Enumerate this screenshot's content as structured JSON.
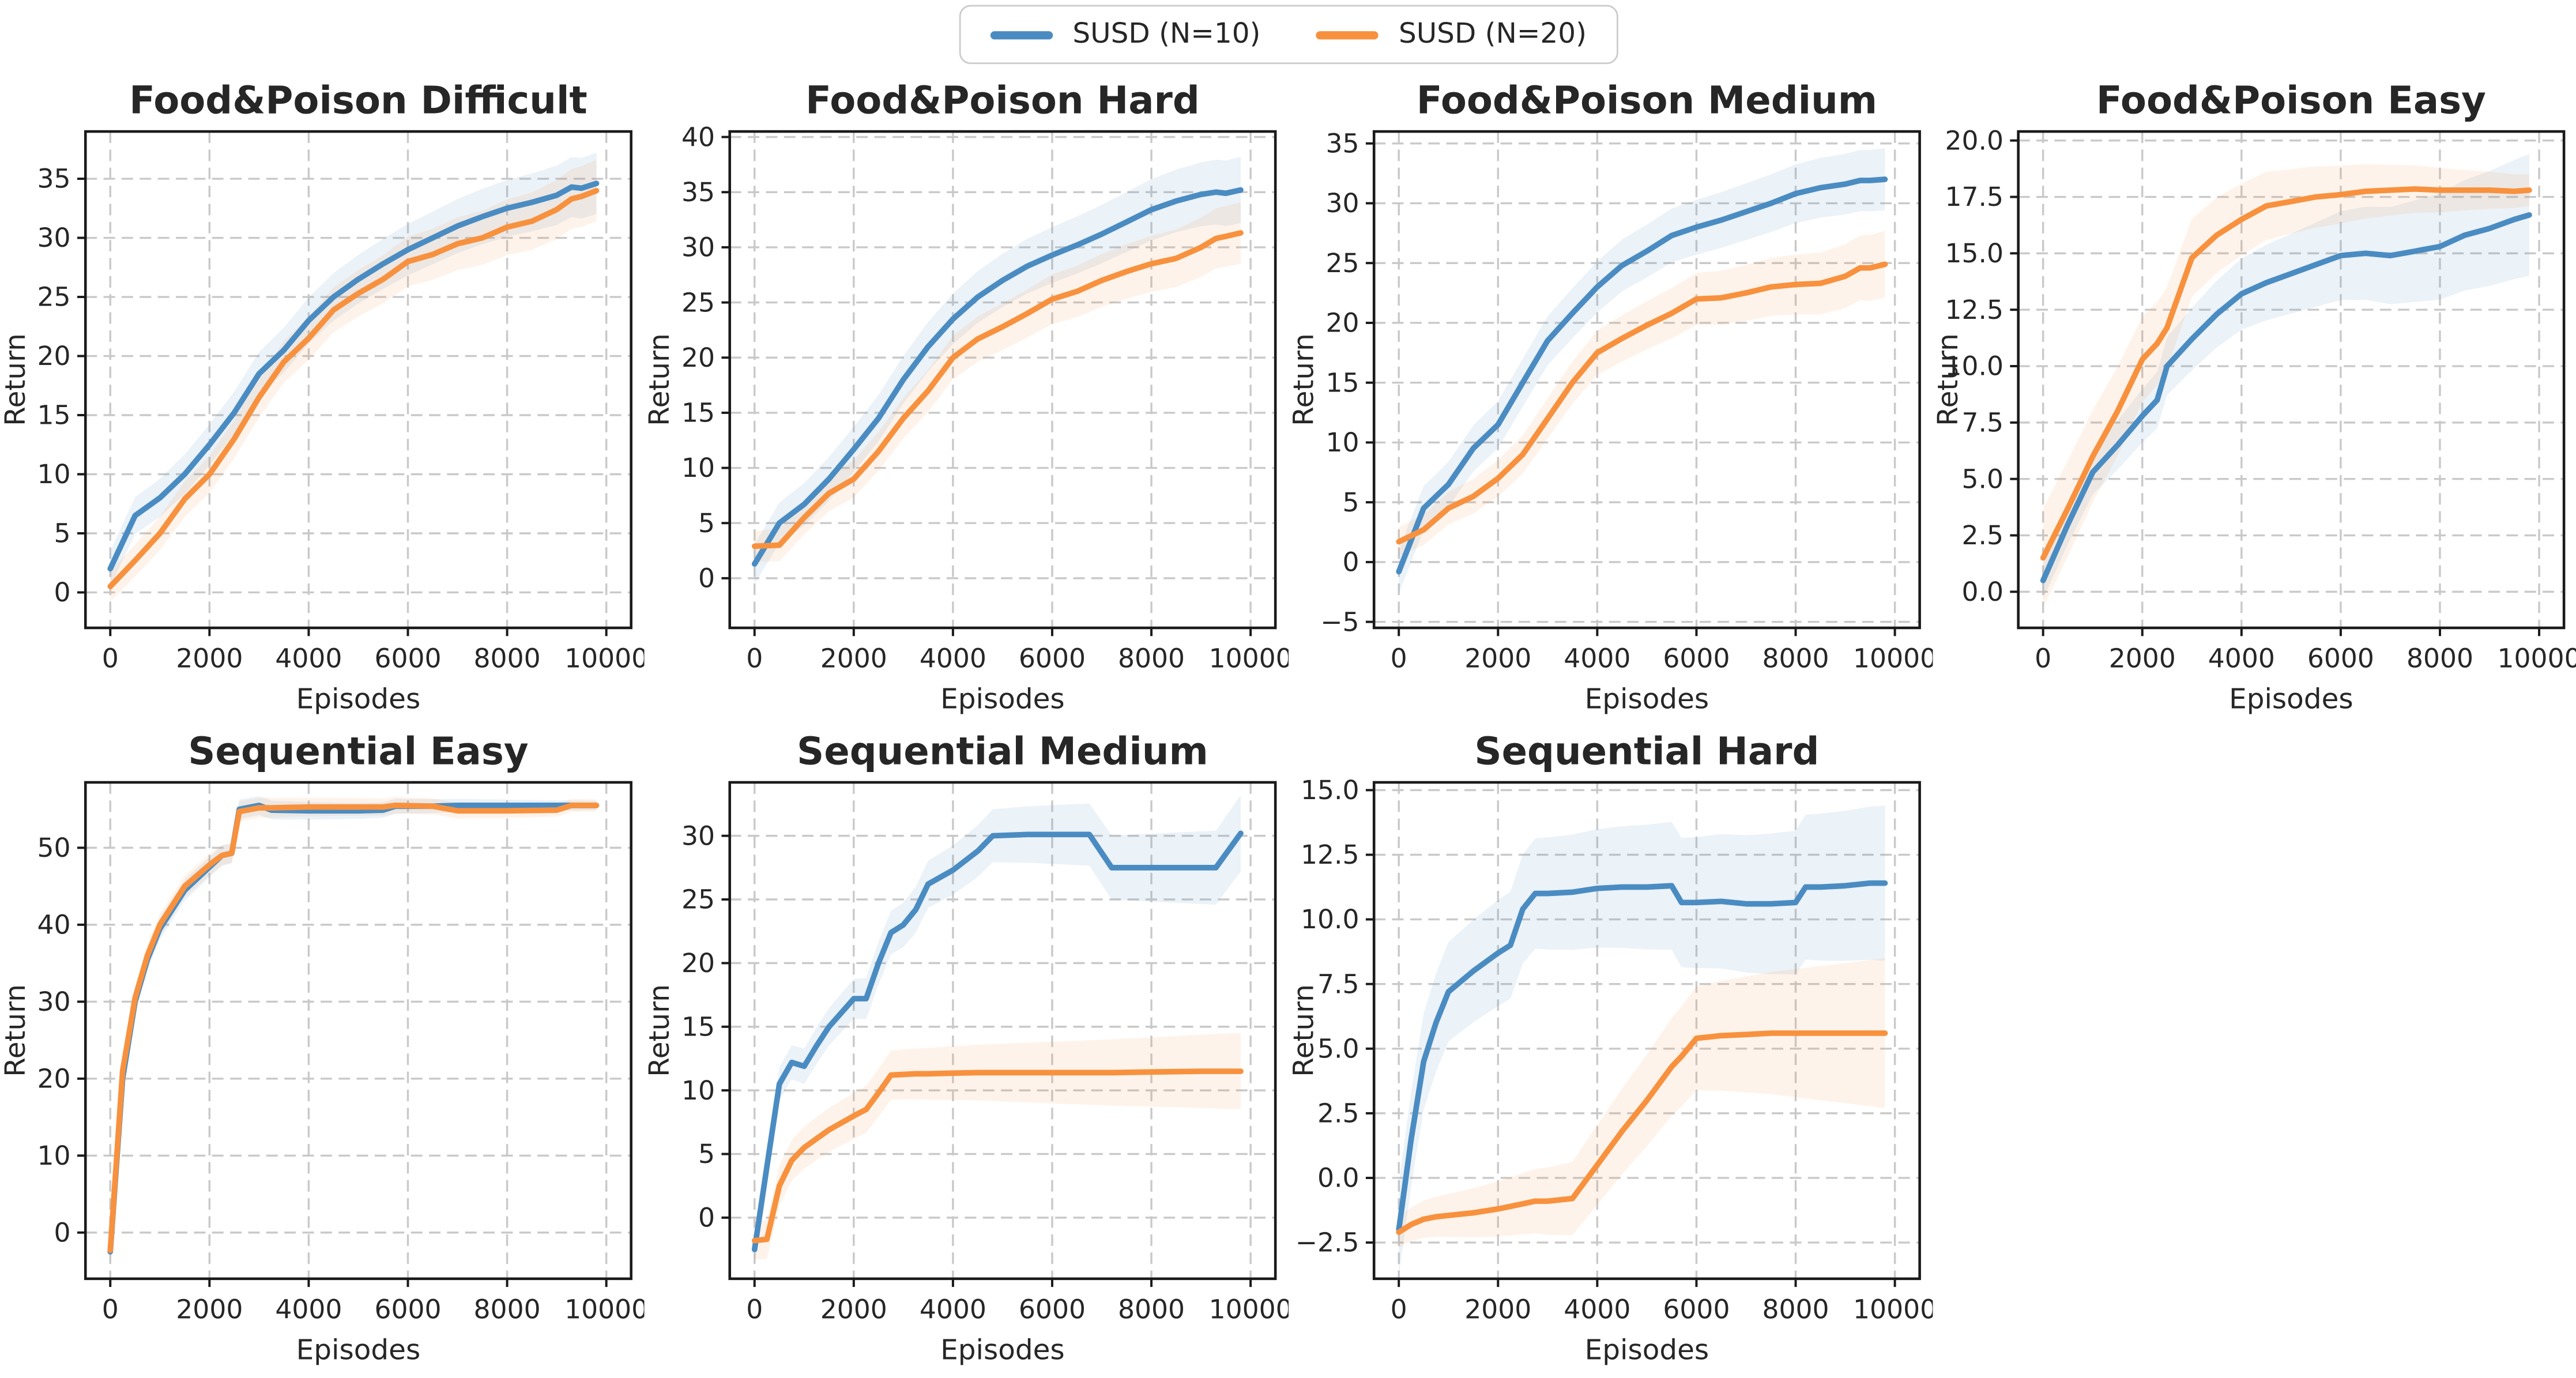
{
  "figure": {
    "background": "#ffffff"
  },
  "legend": {
    "items": [
      {
        "label": "SUSD (N=10)",
        "color": "#4a8cc2"
      },
      {
        "label": "SUSD (N=20)",
        "color": "#f8913e"
      }
    ]
  },
  "chart_data": [
    {
      "type": "line",
      "title": "Food&Poison Difficult",
      "xlabel": "Episodes",
      "ylabel": "Return",
      "xlim": [
        -500,
        10500
      ],
      "ylim": [
        -3,
        39
      ],
      "xticks": [
        0,
        2000,
        4000,
        6000,
        8000,
        10000
      ],
      "yticks": [
        0,
        5,
        10,
        15,
        20,
        25,
        30,
        35
      ],
      "ytick_format": "int",
      "grid": true,
      "legend_position": "figure-top",
      "series": [
        {
          "name": "SUSD (N=10)",
          "color": "#4a8cc2",
          "band": [
            1.5,
            2.6
          ],
          "x": [
            0,
            500,
            1000,
            1500,
            2000,
            2500,
            3000,
            3500,
            4000,
            4500,
            5000,
            5500,
            6000,
            6500,
            7000,
            7500,
            8000,
            8500,
            9000,
            9300,
            9500,
            9800
          ],
          "y": [
            2.0,
            6.5,
            8.0,
            10.0,
            12.5,
            15.2,
            18.5,
            20.5,
            23.0,
            25.0,
            26.5,
            27.8,
            29.0,
            30.0,
            31.0,
            31.8,
            32.5,
            33.0,
            33.6,
            34.3,
            34.2,
            34.6
          ]
        },
        {
          "name": "SUSD (N=20)",
          "color": "#f8913e",
          "band": [
            1.3,
            2.6
          ],
          "x": [
            0,
            500,
            1000,
            1500,
            2000,
            2500,
            3000,
            3500,
            4000,
            4500,
            5000,
            5500,
            6000,
            6500,
            7000,
            7500,
            8000,
            8500,
            9000,
            9300,
            9500,
            9800
          ],
          "y": [
            0.5,
            2.7,
            5.0,
            7.9,
            10.0,
            13.0,
            16.5,
            19.5,
            21.5,
            23.9,
            25.3,
            26.5,
            28.0,
            28.6,
            29.5,
            30.0,
            30.9,
            31.4,
            32.4,
            33.3,
            33.5,
            34.0
          ]
        }
      ]
    },
    {
      "type": "line",
      "title": "Food&Poison Hard",
      "xlabel": "Episodes",
      "ylabel": "Return",
      "xlim": [
        -500,
        10500
      ],
      "ylim": [
        -4.5,
        40.5
      ],
      "xticks": [
        0,
        2000,
        4000,
        6000,
        8000,
        10000
      ],
      "yticks": [
        0,
        5,
        10,
        15,
        20,
        25,
        30,
        35,
        40
      ],
      "ytick_format": "int",
      "grid": true,
      "series": [
        {
          "name": "SUSD (N=10)",
          "color": "#4a8cc2",
          "band": [
            1.8,
            3.0
          ],
          "x": [
            0,
            500,
            1000,
            1500,
            2000,
            2500,
            3000,
            3500,
            4000,
            4500,
            5000,
            5500,
            6000,
            6500,
            7000,
            7500,
            8000,
            8500,
            9000,
            9300,
            9500,
            9800
          ],
          "y": [
            1.3,
            5.0,
            6.7,
            9.0,
            11.7,
            14.5,
            18.0,
            21.0,
            23.5,
            25.5,
            27.0,
            28.3,
            29.3,
            30.2,
            31.2,
            32.3,
            33.4,
            34.2,
            34.8,
            35.0,
            34.9,
            35.2
          ]
        },
        {
          "name": "SUSD (N=20)",
          "color": "#f8913e",
          "band": [
            1.4,
            2.8
          ],
          "x": [
            0,
            500,
            1000,
            1500,
            2000,
            2500,
            3000,
            3500,
            4000,
            4500,
            5000,
            5500,
            6000,
            6500,
            7000,
            7500,
            8000,
            8500,
            9000,
            9300,
            9500,
            9800
          ],
          "y": [
            2.9,
            3.0,
            5.5,
            7.7,
            9.0,
            11.5,
            14.5,
            17.0,
            20.0,
            21.7,
            22.8,
            24.0,
            25.3,
            26.0,
            27.0,
            27.8,
            28.5,
            29.0,
            30.0,
            30.8,
            31.0,
            31.3
          ]
        }
      ]
    },
    {
      "type": "line",
      "title": "Food&Poison Medium",
      "xlabel": "Episodes",
      "ylabel": "Return",
      "xlim": [
        -500,
        10500
      ],
      "ylim": [
        -5.5,
        36
      ],
      "xticks": [
        0,
        2000,
        4000,
        6000,
        8000,
        10000
      ],
      "yticks": [
        -5,
        0,
        5,
        10,
        15,
        20,
        25,
        30,
        35
      ],
      "ytick_format": "int",
      "grid": true,
      "series": [
        {
          "name": "SUSD (N=10)",
          "color": "#4a8cc2",
          "band": [
            1.8,
            2.6
          ],
          "x": [
            0,
            500,
            1000,
            1500,
            2000,
            2500,
            3000,
            3500,
            4000,
            4500,
            5000,
            5500,
            6000,
            6500,
            7000,
            7500,
            8000,
            8500,
            9000,
            9300,
            9500,
            9800
          ],
          "y": [
            -0.8,
            4.5,
            6.5,
            9.5,
            11.5,
            15.0,
            18.5,
            20.8,
            23.0,
            24.8,
            26.0,
            27.3,
            28.0,
            28.6,
            29.3,
            30.0,
            30.8,
            31.3,
            31.6,
            31.9,
            31.9,
            32.0
          ]
        },
        {
          "name": "SUSD (N=20)",
          "color": "#f8913e",
          "band": [
            1.2,
            2.8
          ],
          "x": [
            0,
            500,
            1000,
            1500,
            2000,
            2500,
            3000,
            3500,
            4000,
            4500,
            5000,
            5500,
            6000,
            6500,
            7000,
            7500,
            8000,
            8500,
            9000,
            9300,
            9500,
            9800
          ],
          "y": [
            1.7,
            2.7,
            4.5,
            5.5,
            7.0,
            9.0,
            12.0,
            15.0,
            17.5,
            18.7,
            19.8,
            20.8,
            22.0,
            22.1,
            22.5,
            23.0,
            23.2,
            23.3,
            23.9,
            24.6,
            24.6,
            24.9
          ]
        }
      ]
    },
    {
      "type": "line",
      "title": "Food&Poison Easy",
      "xlabel": "Episodes",
      "ylabel": "Return",
      "xlim": [
        -500,
        10500
      ],
      "ylim": [
        -1.6,
        20.4
      ],
      "xticks": [
        0,
        2000,
        4000,
        6000,
        8000,
        10000
      ],
      "yticks": [
        0,
        2.5,
        5,
        7.5,
        10,
        12.5,
        15,
        17.5,
        20
      ],
      "ytick_format": "dec1",
      "grid": true,
      "series": [
        {
          "name": "SUSD (N=10)",
          "color": "#4a8cc2",
          "band": [
            0.8,
            2.7
          ],
          "x": [
            0,
            500,
            1000,
            1500,
            2000,
            2300,
            2500,
            3000,
            3500,
            4000,
            4500,
            5000,
            5500,
            6000,
            6500,
            7000,
            7500,
            8000,
            8500,
            9000,
            9500,
            9800
          ],
          "y": [
            0.5,
            3.0,
            5.3,
            6.5,
            7.8,
            8.5,
            10.0,
            11.2,
            12.3,
            13.2,
            13.7,
            14.1,
            14.5,
            14.9,
            15.0,
            14.9,
            15.1,
            15.3,
            15.8,
            16.1,
            16.5,
            16.7
          ]
        },
        {
          "name": "SUSD (N=20)",
          "color": "#f8913e",
          "band": [
            2.2,
            0.7
          ],
          "x": [
            0,
            500,
            1000,
            1500,
            2000,
            2300,
            2500,
            3000,
            3500,
            4000,
            4500,
            5000,
            5500,
            6000,
            6500,
            7000,
            7500,
            8000,
            8500,
            9000,
            9500,
            9800
          ],
          "y": [
            1.5,
            3.7,
            6.0,
            8.0,
            10.3,
            11.0,
            11.7,
            14.8,
            15.8,
            16.5,
            17.1,
            17.3,
            17.5,
            17.6,
            17.75,
            17.8,
            17.85,
            17.8,
            17.8,
            17.8,
            17.75,
            17.8
          ]
        }
      ]
    },
    {
      "type": "line",
      "title": "Sequential Easy",
      "xlabel": "Episodes",
      "ylabel": "Return",
      "xlim": [
        -500,
        10500
      ],
      "ylim": [
        -6,
        58.5
      ],
      "xticks": [
        0,
        2000,
        4000,
        6000,
        8000,
        10000
      ],
      "yticks": [
        0,
        10,
        20,
        30,
        40,
        50
      ],
      "ytick_format": "int",
      "grid": true,
      "series": [
        {
          "name": "SUSD (N=10)",
          "color": "#4a8cc2",
          "band": [
            1.5,
            0.6
          ],
          "x": [
            0,
            250,
            500,
            750,
            1000,
            1500,
            2000,
            2250,
            2450,
            2600,
            3000,
            3250,
            4000,
            5000,
            5500,
            5750,
            6500,
            7000,
            8000,
            9000,
            9300,
            9800
          ],
          "y": [
            -2.5,
            20.0,
            30.0,
            35.5,
            39.5,
            44.5,
            47.5,
            49.0,
            49.3,
            55.0,
            55.5,
            54.9,
            54.8,
            54.8,
            54.9,
            55.4,
            55.4,
            55.5,
            55.5,
            55.5,
            55.5,
            55.5
          ]
        },
        {
          "name": "SUSD (N=20)",
          "color": "#f8913e",
          "band": [
            1.5,
            0.8
          ],
          "x": [
            0,
            250,
            500,
            750,
            1000,
            1500,
            2000,
            2250,
            2450,
            2600,
            3000,
            3250,
            4000,
            5000,
            5500,
            5750,
            6500,
            7000,
            8000,
            9000,
            9300,
            9800
          ],
          "y": [
            -2.3,
            21.0,
            30.5,
            36.0,
            40.0,
            45.0,
            47.8,
            49.0,
            49.3,
            54.7,
            55.2,
            55.2,
            55.3,
            55.3,
            55.3,
            55.5,
            55.4,
            54.8,
            54.8,
            54.9,
            55.5,
            55.5
          ]
        }
      ]
    },
    {
      "type": "line",
      "title": "Sequential Medium",
      "xlabel": "Episodes",
      "ylabel": "Return",
      "xlim": [
        -500,
        10500
      ],
      "ylim": [
        -4.8,
        34.2
      ],
      "xticks": [
        0,
        2000,
        4000,
        6000,
        8000,
        10000
      ],
      "yticks": [
        0,
        5,
        10,
        15,
        20,
        25,
        30
      ],
      "ytick_format": "int",
      "grid": true,
      "series": [
        {
          "name": "SUSD (N=10)",
          "color": "#4a8cc2",
          "band": [
            1.2,
            3.0
          ],
          "x": [
            0,
            250,
            500,
            750,
            1000,
            1250,
            1500,
            2000,
            2250,
            2500,
            2750,
            3000,
            3250,
            3500,
            4000,
            4500,
            4800,
            5500,
            6500,
            6750,
            7200,
            8000,
            9000,
            9300,
            9800
          ],
          "y": [
            -2.5,
            4.0,
            10.5,
            12.2,
            11.9,
            13.5,
            15.0,
            17.2,
            17.2,
            20.0,
            22.4,
            23.0,
            24.2,
            26.2,
            27.3,
            28.8,
            30.0,
            30.1,
            30.1,
            30.1,
            27.5,
            27.5,
            27.5,
            27.5,
            30.2
          ]
        },
        {
          "name": "SUSD (N=20)",
          "color": "#f8913e",
          "band": [
            1.5,
            3.0
          ],
          "x": [
            0,
            250,
            500,
            750,
            1000,
            1250,
            1500,
            2000,
            2250,
            2500,
            2750,
            3000,
            3250,
            3500,
            4000,
            4500,
            4800,
            5500,
            6500,
            6750,
            7200,
            8000,
            9000,
            9300,
            9800
          ],
          "y": [
            -1.8,
            -1.7,
            2.5,
            4.5,
            5.5,
            6.2,
            6.9,
            8.0,
            8.5,
            9.8,
            11.2,
            11.25,
            11.3,
            11.3,
            11.35,
            11.4,
            11.4,
            11.4,
            11.4,
            11.4,
            11.4,
            11.45,
            11.5,
            11.5,
            11.5
          ]
        }
      ]
    },
    {
      "type": "line",
      "title": "Sequential Hard",
      "xlabel": "Episodes",
      "ylabel": "Return",
      "xlim": [
        -500,
        10500
      ],
      "ylim": [
        -3.9,
        15.3
      ],
      "xticks": [
        0,
        2000,
        4000,
        6000,
        8000,
        10000
      ],
      "yticks": [
        -2.5,
        0,
        2.5,
        5,
        7.5,
        10,
        12.5,
        15
      ],
      "ytick_format": "dec1",
      "grid": true,
      "series": [
        {
          "name": "SUSD (N=10)",
          "color": "#4a8cc2",
          "band": [
            1.8,
            3.0
          ],
          "x": [
            0,
            250,
            500,
            750,
            1000,
            1500,
            2000,
            2250,
            2500,
            2750,
            3000,
            3500,
            4000,
            4500,
            5000,
            5500,
            5700,
            6000,
            6500,
            7000,
            7500,
            8000,
            8200,
            8500,
            9000,
            9500,
            9800
          ],
          "y": [
            -2.0,
            1.5,
            4.5,
            6.0,
            7.2,
            8.0,
            8.7,
            9.0,
            10.4,
            11.0,
            11.0,
            11.05,
            11.2,
            11.25,
            11.25,
            11.3,
            10.65,
            10.65,
            10.7,
            10.6,
            10.6,
            10.65,
            11.25,
            11.25,
            11.3,
            11.4,
            11.4
          ]
        },
        {
          "name": "SUSD (N=20)",
          "color": "#f8913e",
          "band": [
            0.6,
            2.9
          ],
          "x": [
            0,
            250,
            500,
            750,
            1000,
            1500,
            2000,
            2250,
            2500,
            2750,
            3000,
            3500,
            4000,
            4500,
            5000,
            5500,
            5700,
            6000,
            6500,
            7000,
            7500,
            8000,
            8200,
            8500,
            9000,
            9500,
            9800
          ],
          "y": [
            -2.1,
            -1.8,
            -1.6,
            -1.5,
            -1.45,
            -1.35,
            -1.2,
            -1.1,
            -1.0,
            -0.9,
            -0.9,
            -0.8,
            0.5,
            1.8,
            3.0,
            4.3,
            4.7,
            5.4,
            5.5,
            5.55,
            5.6,
            5.6,
            5.6,
            5.6,
            5.6,
            5.6,
            5.6
          ]
        }
      ]
    }
  ]
}
